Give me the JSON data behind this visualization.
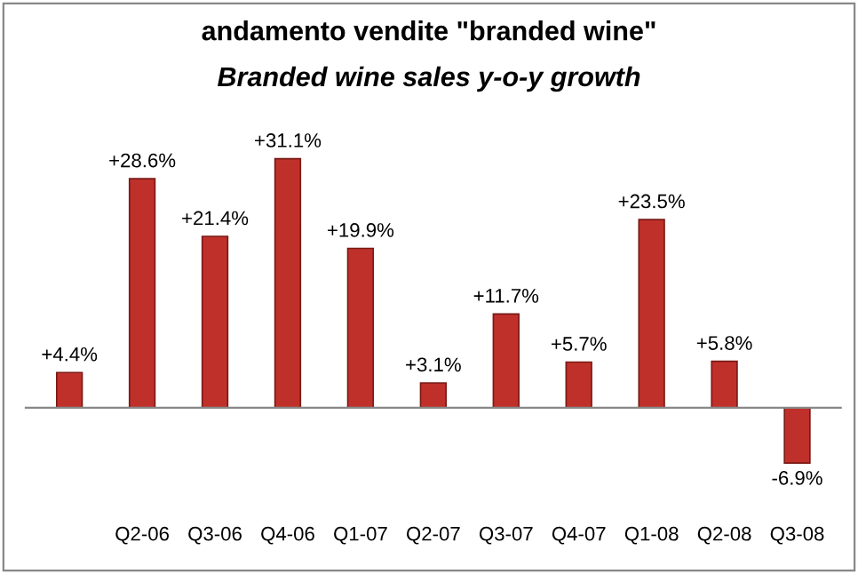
{
  "chart_data": {
    "type": "bar",
    "title": "andamento vendite \"branded wine\"",
    "subtitle": "Branded wine sales y-o-y growth",
    "categories": [
      null,
      "Q2-06",
      "Q3-06",
      "Q4-06",
      "Q1-07",
      "Q2-07",
      "Q3-07",
      "Q4-07",
      "Q1-08",
      "Q2-08",
      "Q3-08"
    ],
    "values": [
      4.4,
      28.6,
      21.4,
      31.1,
      19.9,
      3.1,
      11.7,
      5.7,
      23.5,
      5.8,
      -6.9
    ],
    "value_labels": [
      "+4.4%",
      "+28.6%",
      "+21.4%",
      "+31.1%",
      "+19.9%",
      "+3.1%",
      "+11.7%",
      "+5.7%",
      "+23.5%",
      "+5.8%",
      "-6.9%"
    ],
    "color": "#c0302a",
    "grid": false,
    "legend": false
  }
}
